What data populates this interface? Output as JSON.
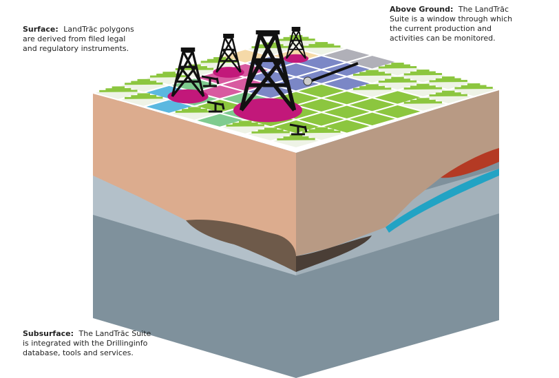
{
  "surface": {
    "label": "Surface:",
    "lines": [
      "LandTrăc polygons",
      "are  derived from filed legal",
      "and regulatory instruments."
    ]
  },
  "above_ground": {
    "label": "Above Ground:",
    "lines": [
      "The LandTrăc",
      "Suite is a window through which",
      "the current production and",
      "activities can be monitored."
    ]
  },
  "subsurface": {
    "label": "Subsurface:",
    "lines": [
      "The LandTrăc Suite",
      "is integrated with the Drillinginfo",
      "database, tools and services."
    ]
  }
}
